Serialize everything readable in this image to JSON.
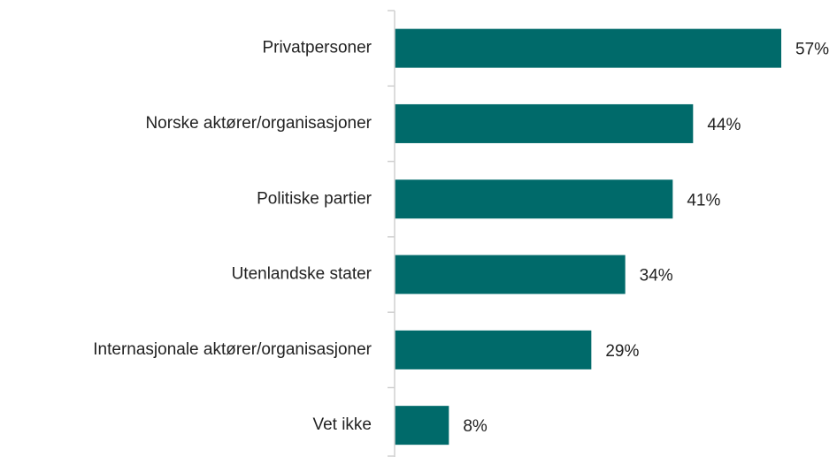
{
  "chart_data": {
    "type": "bar",
    "orientation": "horizontal",
    "categories": [
      "Privatpersoner",
      "Norske aktører/organisasjoner",
      "Politiske partier",
      "Utenlandske stater",
      "Internasjonale aktører/organisasjoner",
      "Vet ikke"
    ],
    "values": [
      57,
      44,
      41,
      34,
      29,
      8
    ],
    "value_labels": [
      "57%",
      "44%",
      "41%",
      "34%",
      "29%",
      "8%"
    ],
    "color": "#006a6a",
    "xlim": [
      0,
      60
    ]
  }
}
